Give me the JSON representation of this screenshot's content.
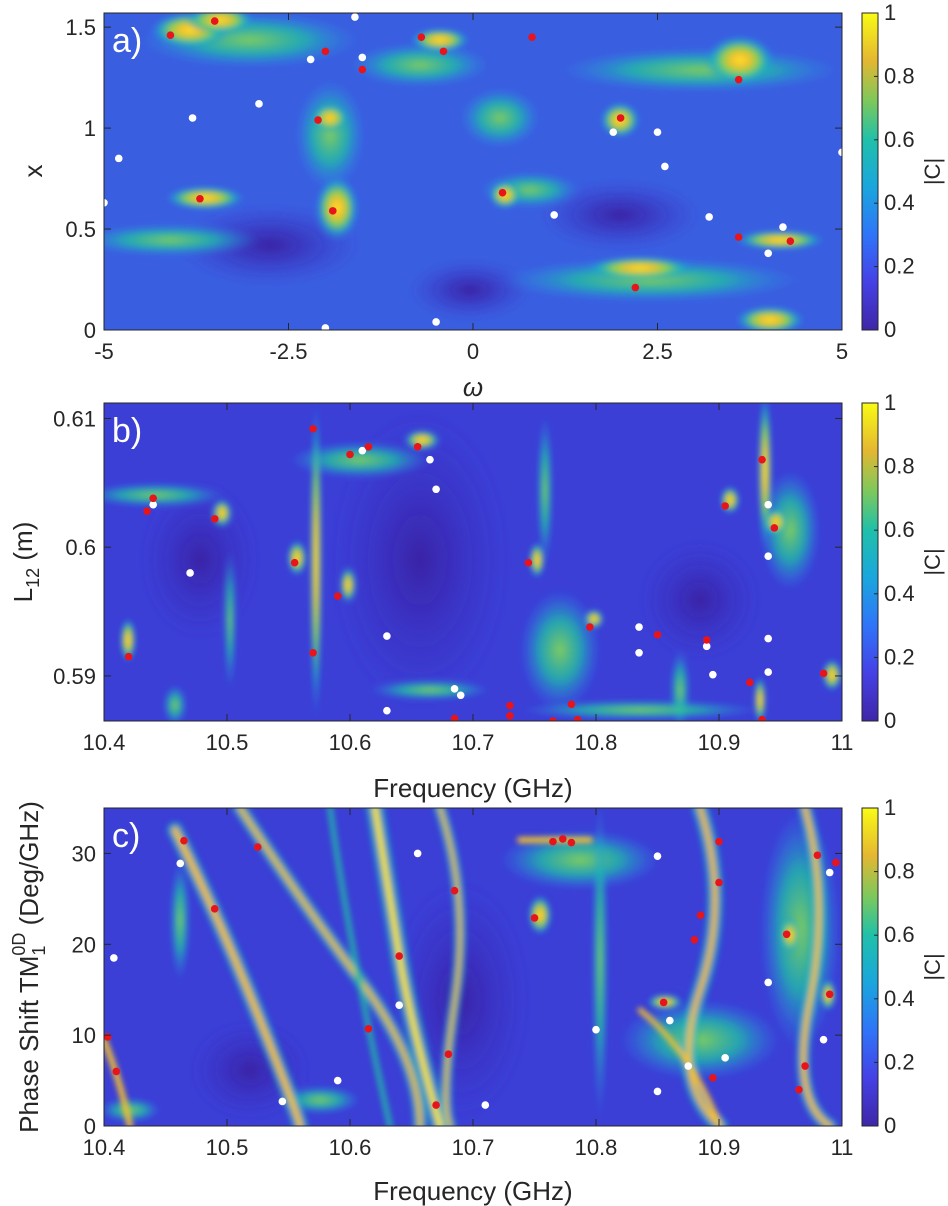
{
  "chart_data": [
    {
      "type": "heatmap",
      "panel_label": "a)",
      "xlabel": "ω",
      "ylabel": "x",
      "xlim": [
        -5,
        5
      ],
      "ylim": [
        0,
        1.57
      ],
      "x_ticks": [
        -5,
        -2.5,
        0,
        2.5,
        5
      ],
      "x_tick_labels": [
        "-5",
        "-2.5",
        "0",
        "2.5",
        "5"
      ],
      "y_ticks": [
        0,
        0.5,
        1,
        1.5
      ],
      "y_tick_labels": [
        "0",
        "0.5",
        "1",
        "1.5"
      ],
      "colorbar": {
        "label": "|C|",
        "range": [
          0,
          1
        ],
        "ticks": [
          "0",
          "0.2",
          "0.4",
          "0.6",
          "0.8",
          "1"
        ]
      },
      "colors": {
        "background": "#3a5ee0",
        "peak": "#fde725",
        "red_marker": "#e8141c",
        "white_marker": "#ffffff"
      },
      "red_points": [
        [
          -4.1,
          1.46
        ],
        [
          -3.5,
          1.53
        ],
        [
          -2.0,
          1.38
        ],
        [
          -0.7,
          1.45
        ],
        [
          -0.4,
          1.38
        ],
        [
          0.8,
          1.45
        ],
        [
          -1.5,
          1.29
        ],
        [
          3.6,
          1.24
        ],
        [
          -2.1,
          1.04
        ],
        [
          2.0,
          1.05
        ],
        [
          -3.7,
          0.65
        ],
        [
          -1.9,
          0.59
        ],
        [
          0.4,
          0.68
        ],
        [
          3.6,
          0.46
        ],
        [
          4.3,
          0.44
        ],
        [
          2.2,
          0.21
        ]
      ],
      "white_points": [
        [
          -1.6,
          1.55
        ],
        [
          -2.2,
          1.34
        ],
        [
          -1.5,
          1.35
        ],
        [
          -2.9,
          1.12
        ],
        [
          -3.8,
          1.05
        ],
        [
          1.9,
          0.98
        ],
        [
          2.5,
          0.98
        ],
        [
          2.6,
          0.81
        ],
        [
          -4.8,
          0.85
        ],
        [
          5.0,
          0.88
        ],
        [
          -5.0,
          0.63
        ],
        [
          1.1,
          0.57
        ],
        [
          3.2,
          0.56
        ],
        [
          4.2,
          0.51
        ],
        [
          4.0,
          0.38
        ],
        [
          -2.0,
          0.01
        ],
        [
          -0.5,
          0.04
        ]
      ]
    },
    {
      "type": "heatmap",
      "panel_label": "b)",
      "xlabel": "Frequency (GHz)",
      "ylabel_main": "L",
      "ylabel_sub": "12",
      "ylabel_tail": " (m)",
      "xlim": [
        10.4,
        11
      ],
      "ylim": [
        0.5865,
        0.6112
      ],
      "x_ticks": [
        10.4,
        10.5,
        10.6,
        10.7,
        10.8,
        10.9,
        11
      ],
      "x_tick_labels": [
        "10.4",
        "10.5",
        "10.6",
        "10.7",
        "10.8",
        "10.9",
        "11"
      ],
      "y_ticks": [
        0.59,
        0.6,
        0.61
      ],
      "y_tick_labels": [
        "0.59",
        "0.6",
        "0.61"
      ],
      "colorbar": {
        "label": "|C|",
        "range": [
          0,
          1
        ],
        "ticks": [
          "0",
          "0.2",
          "0.4",
          "0.6",
          "0.8",
          "1"
        ]
      },
      "colors": {
        "background": "#3b3fd6",
        "peak": "#fde725",
        "red_marker": "#e8141c",
        "white_marker": "#ffffff"
      },
      "red_points": [
        [
          10.435,
          0.6028
        ],
        [
          10.44,
          0.6038
        ],
        [
          10.49,
          0.6022
        ],
        [
          10.555,
          0.5988
        ],
        [
          10.57,
          0.6092
        ],
        [
          10.6,
          0.6072
        ],
        [
          10.615,
          0.6078
        ],
        [
          10.655,
          0.6078
        ],
        [
          10.59,
          0.5962
        ],
        [
          10.57,
          0.5918
        ],
        [
          10.42,
          0.5915
        ],
        [
          10.745,
          0.5988
        ],
        [
          10.795,
          0.5938
        ],
        [
          10.85,
          0.5932
        ],
        [
          10.89,
          0.5928
        ],
        [
          10.925,
          0.5895
        ],
        [
          10.935,
          0.6068
        ],
        [
          10.905,
          0.6032
        ],
        [
          10.945,
          0.6015
        ],
        [
          10.985,
          0.5902
        ],
        [
          10.685,
          0.5867
        ],
        [
          10.73,
          0.5877
        ],
        [
          10.73,
          0.5869
        ],
        [
          10.765,
          0.5865
        ],
        [
          10.78,
          0.5878
        ],
        [
          10.785,
          0.5866
        ],
        [
          10.935,
          0.5866
        ]
      ],
      "white_points": [
        [
          10.44,
          0.6033
        ],
        [
          10.47,
          0.598
        ],
        [
          10.61,
          0.6075
        ],
        [
          10.665,
          0.6068
        ],
        [
          10.67,
          0.6045
        ],
        [
          10.63,
          0.5931
        ],
        [
          10.685,
          0.589
        ],
        [
          10.69,
          0.5885
        ],
        [
          10.63,
          0.5873
        ],
        [
          10.835,
          0.5938
        ],
        [
          10.835,
          0.5918
        ],
        [
          10.89,
          0.5923
        ],
        [
          10.895,
          0.5901
        ],
        [
          10.94,
          0.6033
        ],
        [
          10.94,
          0.5993
        ],
        [
          10.94,
          0.5929
        ],
        [
          10.94,
          0.5903
        ]
      ]
    },
    {
      "type": "heatmap",
      "panel_label": "c)",
      "xlabel": "Frequency (GHz)",
      "ylabel_main": "Phase Shift TM",
      "ylabel_sub": "1",
      "ylabel_sup": "0D",
      "ylabel_tail": " (Deg/GHz)",
      "xlim": [
        10.4,
        11
      ],
      "ylim": [
        0,
        35
      ],
      "x_ticks": [
        10.4,
        10.5,
        10.6,
        10.7,
        10.8,
        10.9,
        11
      ],
      "x_tick_labels": [
        "10.4",
        "10.5",
        "10.6",
        "10.7",
        "10.8",
        "10.9",
        "11"
      ],
      "y_ticks": [
        0,
        10,
        20,
        30
      ],
      "y_tick_labels": [
        "0",
        "10",
        "20",
        "30"
      ],
      "colorbar": {
        "label": "|C|",
        "range": [
          0,
          1
        ],
        "ticks": [
          "0",
          "0.2",
          "0.4",
          "0.6",
          "0.8",
          "1"
        ]
      },
      "colors": {
        "background": "#3b3fd6",
        "peak": "#fde725",
        "red_marker": "#e8141c",
        "white_marker": "#ffffff"
      },
      "red_points": [
        [
          10.403,
          9.8
        ],
        [
          10.41,
          6.0
        ],
        [
          10.465,
          31.4
        ],
        [
          10.49,
          23.9
        ],
        [
          10.525,
          30.7
        ],
        [
          10.615,
          10.7
        ],
        [
          10.64,
          18.7
        ],
        [
          10.67,
          2.3
        ],
        [
          10.68,
          7.9
        ],
        [
          10.685,
          25.9
        ],
        [
          10.75,
          22.9
        ],
        [
          10.765,
          31.3
        ],
        [
          10.773,
          31.6
        ],
        [
          10.78,
          31.2
        ],
        [
          10.855,
          13.6
        ],
        [
          10.88,
          20.5
        ],
        [
          10.885,
          23.2
        ],
        [
          10.9,
          31.3
        ],
        [
          10.9,
          26.8
        ],
        [
          10.895,
          5.3
        ],
        [
          10.955,
          21.1
        ],
        [
          10.965,
          4.0
        ],
        [
          10.97,
          6.6
        ],
        [
          10.98,
          29.8
        ],
        [
          10.99,
          14.5
        ],
        [
          10.995,
          29.0
        ]
      ],
      "white_points": [
        [
          10.408,
          18.5
        ],
        [
          10.462,
          28.9
        ],
        [
          10.545,
          2.7
        ],
        [
          10.59,
          5.0
        ],
        [
          10.64,
          13.3
        ],
        [
          10.655,
          30.0
        ],
        [
          10.71,
          2.3
        ],
        [
          10.8,
          10.6
        ],
        [
          10.85,
          29.7
        ],
        [
          10.86,
          11.6
        ],
        [
          10.85,
          3.8
        ],
        [
          10.875,
          6.6
        ],
        [
          10.905,
          7.5
        ],
        [
          10.94,
          15.8
        ],
        [
          10.985,
          9.5
        ],
        [
          10.99,
          27.9
        ]
      ]
    }
  ]
}
